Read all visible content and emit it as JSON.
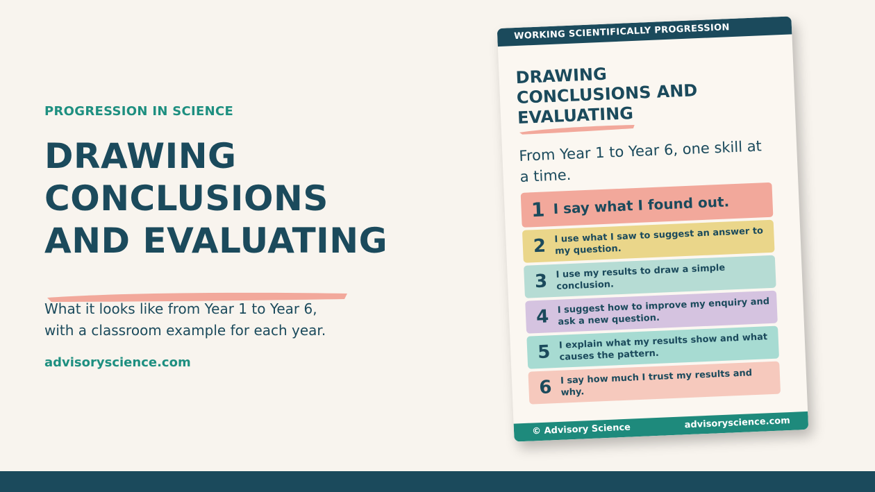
{
  "hero": {
    "eyebrow": "PROGRESSION IN SCIENCE",
    "headline": [
      "DRAWING",
      "CONCLUSIONS",
      "AND EVALUATING"
    ],
    "subtitle_lines": [
      "What it looks like from Year 1 to Year 6,",
      "with a classroom example for each year."
    ],
    "website": "advisoryscience.com"
  },
  "poster": {
    "top_banner": "WORKING SCIENTIFICALLY PROGRESSION",
    "title_lines": [
      "DRAWING",
      "CONCLUSIONS AND",
      "EVALUATING"
    ],
    "subtitle": "From Year 1 to Year 6, one skill at a time.",
    "items": [
      {
        "number": "1",
        "text": "I say what I found out.",
        "color": "#f2a89b"
      },
      {
        "number": "2",
        "text": "I use what I saw to suggest an answer to my question.",
        "color": "#ead68a"
      },
      {
        "number": "3",
        "text": "I use my results to draw a simple conclusion.",
        "color": "#b6dcd4"
      },
      {
        "number": "4",
        "text": "I suggest how to improve my enquiry and ask a new question.",
        "color": "#d5c3e0"
      },
      {
        "number": "5",
        "text": "I explain what my results show and what causes the pattern.",
        "color": "#a7dbd2"
      },
      {
        "number": "6",
        "text": "I say how much I trust my results and why.",
        "color": "#f6c9bd"
      }
    ],
    "footer_left": "© Advisory Science",
    "footer_right": "advisoryscience.com"
  },
  "colors": {
    "background": "#f8f4ee",
    "navy": "#1b4a5c",
    "teal": "#1e8f80",
    "coral": "#f2a89b"
  }
}
